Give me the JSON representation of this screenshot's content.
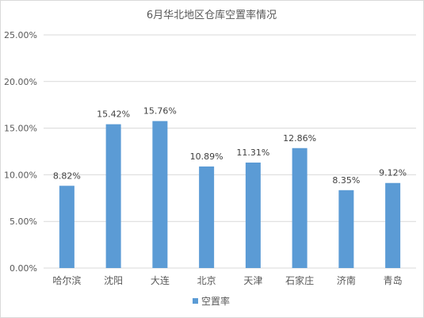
{
  "chart_data": {
    "type": "bar",
    "title": "6月华北地区仓库空置率情况",
    "categories": [
      "哈尔滨",
      "沈阳",
      "大连",
      "北京",
      "天津",
      "石家庄",
      "济南",
      "青岛"
    ],
    "series": [
      {
        "name": "空置率",
        "values": [
          8.82,
          15.42,
          15.76,
          10.89,
          11.31,
          12.86,
          8.35,
          9.12
        ],
        "data_labels": [
          "8.82%",
          "15.42%",
          "15.76%",
          "10.89%",
          "11.31%",
          "12.86%",
          "8.35%",
          "9.12%"
        ],
        "color": "#5b9bd5"
      }
    ],
    "ylim": [
      0,
      25
    ],
    "yticks": [
      0,
      5,
      10,
      15,
      20,
      25
    ],
    "ytick_labels": [
      "0.00%",
      "5.00%",
      "10.00%",
      "15.00%",
      "20.00%",
      "25.00%"
    ],
    "grid": true,
    "gridline_color": "#d9d9d9",
    "legend_position": "bottom",
    "xlabel": "",
    "ylabel": ""
  }
}
